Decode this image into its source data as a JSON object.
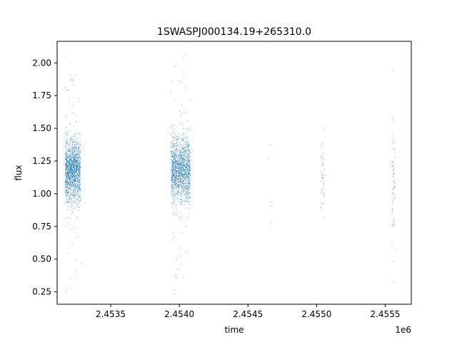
{
  "chart_data": {
    "type": "scatter",
    "title": "1SWASPJ000134.19+265310.0",
    "xlabel": "time",
    "ylabel": "flux",
    "x_offset_label": "1e6",
    "xlim": [
      2.45311,
      2.45569
    ],
    "ylim": [
      0.155,
      2.165
    ],
    "x_ticks": [
      2.4535,
      2.454,
      2.4545,
      2.455,
      2.4555
    ],
    "x_tick_labels": [
      "2.4535",
      "2.4540",
      "2.4545",
      "2.4550",
      "2.4555"
    ],
    "y_ticks": [
      0.25,
      0.5,
      0.75,
      1.0,
      1.25,
      1.5,
      1.75,
      2.0
    ],
    "y_tick_labels": [
      "0.25",
      "0.50",
      "0.75",
      "1.00",
      "1.25",
      "1.50",
      "1.75",
      "2.00"
    ],
    "grid": false,
    "marker_color": "#1f77b4",
    "observation_clusters": [
      {
        "x_start": 2.45317,
        "x_end": 2.45328,
        "count": 1500,
        "flux_center": 1.18,
        "flux_spread": 0.12,
        "flux_min": 0.25,
        "flux_max": 2.05
      },
      {
        "x_start": 2.45394,
        "x_end": 2.45408,
        "count": 1500,
        "flux_center": 1.18,
        "flux_spread": 0.12,
        "flux_min": 0.24,
        "flux_max": 2.07
      },
      {
        "x_start": 2.45465,
        "x_end": 2.45468,
        "count": 6,
        "flux_center": 1.1,
        "flux_spread": 0.2,
        "flux_min": 0.78,
        "flux_max": 1.37
      },
      {
        "x_start": 2.45503,
        "x_end": 2.45506,
        "count": 45,
        "flux_center": 1.12,
        "flux_spread": 0.14,
        "flux_min": 0.82,
        "flux_max": 1.5
      },
      {
        "x_start": 2.45555,
        "x_end": 2.45557,
        "count": 70,
        "flux_center": 1.1,
        "flux_spread": 0.2,
        "flux_min": 0.32,
        "flux_max": 1.94
      }
    ]
  }
}
